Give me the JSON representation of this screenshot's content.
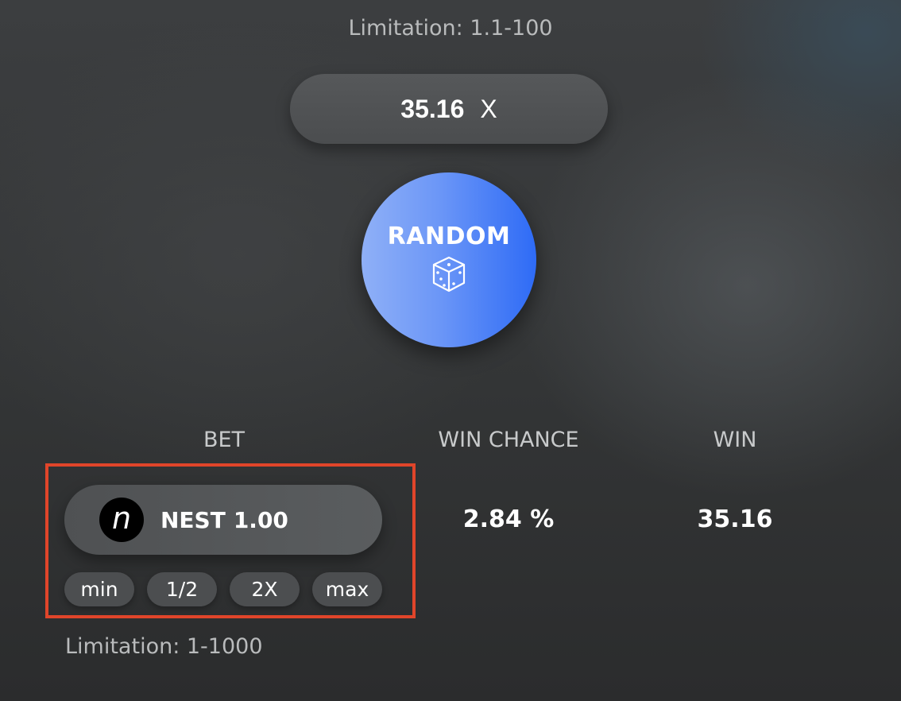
{
  "multiplier": {
    "limitation": "Limitation: 1.1-100",
    "value": "35.16",
    "suffix": "X"
  },
  "random_button": {
    "label": "RANDOM",
    "icon": "dice-icon"
  },
  "columns": {
    "bet": "BET",
    "win_chance": "WIN CHANCE",
    "win": "WIN"
  },
  "bet": {
    "token_icon": "nest-token-icon",
    "token_letter": "n",
    "currency": "NEST",
    "amount": "1.00",
    "buttons": {
      "min": "min",
      "half": "1/2",
      "double": "2X",
      "max": "max"
    },
    "limitation": "Limitation: 1-1000"
  },
  "win_chance": "2.84 %",
  "win": "35.16",
  "colors": {
    "accent_blue": "#2e6bf6",
    "highlight_red": "#e0452a"
  }
}
